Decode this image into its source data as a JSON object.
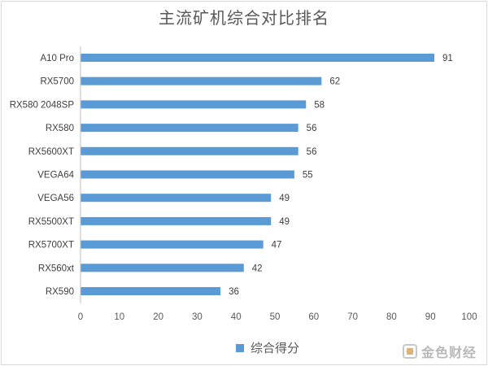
{
  "title": "主流矿机综合对比排名",
  "chart_data": {
    "type": "bar",
    "orientation": "horizontal",
    "categories": [
      "A10 Pro",
      "RX5700",
      "RX580 2048SP",
      "RX580",
      "RX5600XT",
      "VEGA64",
      "VEGA56",
      "RX5500XT",
      "RX5700XT",
      "RX560xt",
      "RX590"
    ],
    "series": [
      {
        "name": "综合得分",
        "values": [
          91,
          62,
          58,
          56,
          56,
          55,
          49,
          49,
          47,
          42,
          36
        ]
      }
    ],
    "xlim": [
      0,
      100
    ],
    "xticks": [
      0,
      10,
      20,
      30,
      40,
      50,
      60,
      70,
      80,
      90,
      100
    ],
    "grid": false,
    "legend_position": "bottom",
    "bar_color": "#5b9bd5"
  },
  "watermark": "金色财经"
}
